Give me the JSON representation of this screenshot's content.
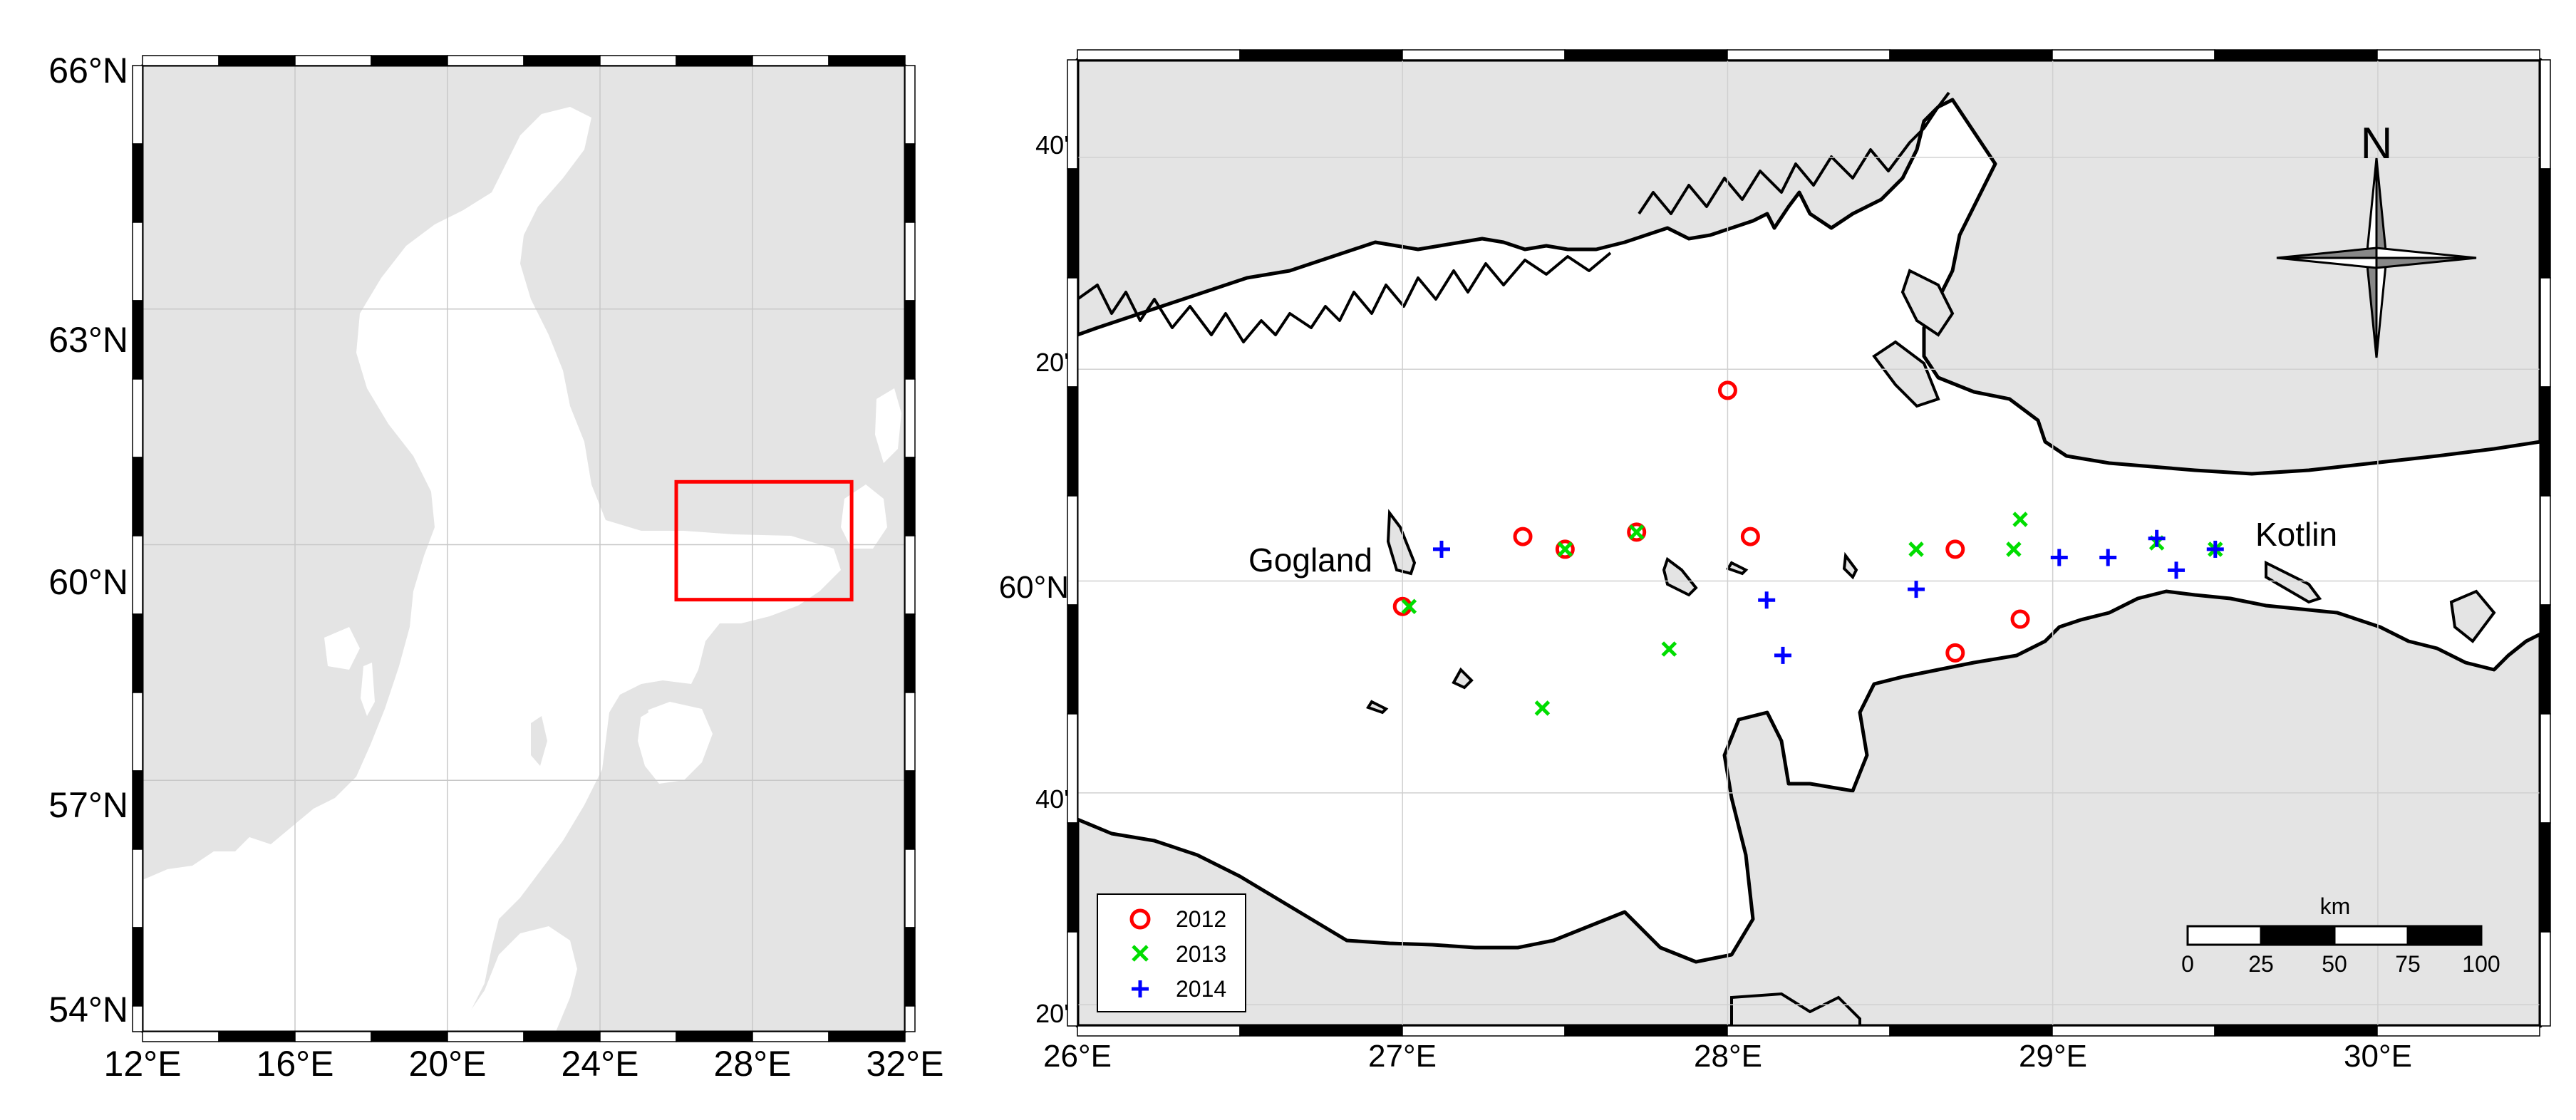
{
  "overview_map": {
    "lat_labels": [
      "66°N",
      "63°N",
      "60°N",
      "57°N",
      "54°N"
    ],
    "lon_labels": [
      "12°E",
      "16°E",
      "20°E",
      "24°E",
      "28°E",
      "32°E"
    ],
    "lat_range": [
      53.8,
      66.1
    ],
    "lon_range": [
      12,
      32
    ],
    "study_area_box": {
      "lon": [
        26,
        30.6
      ],
      "lat": [
        59.3,
        60.8
      ]
    },
    "colors": {
      "land": "#e4e4e4",
      "water": "#ffffff",
      "grid": "#c8c8c8",
      "box": "#ff0000"
    }
  },
  "detail_map": {
    "lat_labels": [
      "40'",
      "20'",
      "60°N",
      "40'",
      "20'"
    ],
    "lon_labels": [
      "26°E",
      "27°E",
      "28°E",
      "29°E",
      "30°E"
    ],
    "lat_range": [
      59.3,
      60.82
    ],
    "lon_range": [
      26,
      30.5
    ],
    "islands": {
      "gogland": "Gogland",
      "kotlin": "Kotlin"
    },
    "compass": {
      "north_label": "N"
    },
    "scale_bar": {
      "unit": "km",
      "ticks": [
        "0",
        "25",
        "50",
        "75",
        "100"
      ]
    },
    "colors": {
      "land": "#e4e4e4",
      "sea": "#ffffff",
      "coast": "#000000",
      "grid": "#d0d0d0"
    }
  },
  "chart_data": {
    "type": "scatter",
    "xlabel": "",
    "ylabel": "",
    "xlim": [
      26,
      30.5
    ],
    "ylim": [
      59.3,
      60.82
    ],
    "series": [
      {
        "name": "2012",
        "marker": "circle",
        "color": "#ff0000",
        "x": [
          27.0,
          27.37,
          27.5,
          27.72,
          28.0,
          28.07,
          28.7,
          28.9,
          28.7
        ],
        "y": [
          59.96,
          60.07,
          60.05,
          60.077,
          60.3,
          60.07,
          60.05,
          59.94,
          59.887
        ]
      },
      {
        "name": "2013",
        "marker": "x",
        "color": "#00dd00",
        "x": [
          27.02,
          27.5,
          27.72,
          27.82,
          27.43,
          28.58,
          28.88,
          28.9,
          29.32,
          29.5
        ],
        "y": [
          59.96,
          60.05,
          60.077,
          59.893,
          59.8,
          60.05,
          60.05,
          60.097,
          60.06,
          60.05
        ]
      },
      {
        "name": "2014",
        "marker": "plus",
        "color": "#0000ff",
        "x": [
          27.12,
          28.12,
          28.58,
          28.17,
          29.02,
          29.17,
          29.32,
          29.38,
          29.5
        ],
        "y": [
          60.05,
          59.97,
          59.987,
          59.883,
          60.037,
          60.037,
          60.067,
          60.017,
          60.05
        ]
      }
    ]
  }
}
